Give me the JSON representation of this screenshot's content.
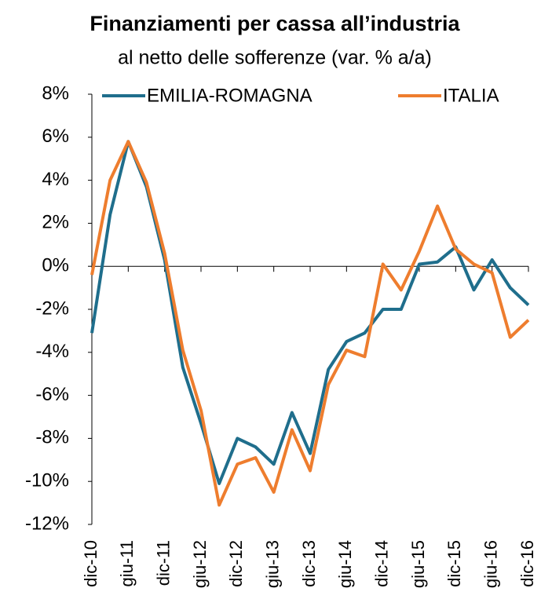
{
  "chart_data": {
    "type": "line",
    "title": "Finanziamenti per cassa all’industria",
    "subtitle": "al netto delle sofferenze (var. % a/a)",
    "categories": [
      "dic-10",
      null,
      "giu-11",
      null,
      "dic-11",
      null,
      "giu-12",
      null,
      "dic-12",
      null,
      "giu-13",
      null,
      "dic-13",
      null,
      "giu-14",
      null,
      "dic-14",
      null,
      "giu-15",
      null,
      "dic-15",
      null,
      "giu-16",
      null,
      "dic-16"
    ],
    "series": [
      {
        "name": "EMILIA-ROMAGNA",
        "color": "#1f6e8c",
        "values": [
          -3.1,
          2.4,
          5.8,
          3.7,
          0.3,
          -4.7,
          -7.3,
          -10.1,
          -8.0,
          -8.4,
          -9.2,
          -6.8,
          -8.7,
          -4.8,
          -3.5,
          -3.1,
          -2.0,
          -2.0,
          0.1,
          0.2,
          0.9,
          -1.1,
          0.3,
          -1.0,
          -1.8
        ]
      },
      {
        "name": "ITALIA",
        "color": "#ee7d2e",
        "values": [
          -0.4,
          4.0,
          5.8,
          3.9,
          0.6,
          -3.9,
          -6.7,
          -11.1,
          -9.2,
          -8.9,
          -10.5,
          -7.6,
          -9.5,
          -5.5,
          -3.9,
          -4.2,
          0.1,
          -1.1,
          0.7,
          2.8,
          0.8,
          0.1,
          -0.3,
          -3.3,
          -2.5
        ]
      }
    ],
    "ylim": [
      -12,
      8
    ],
    "yticks": [
      {
        "value": -12,
        "label": "-12%"
      },
      {
        "value": -10,
        "label": "-10%"
      },
      {
        "value": -8,
        "label": "-8%"
      },
      {
        "value": -6,
        "label": "-6%"
      },
      {
        "value": -4,
        "label": "-4%"
      },
      {
        "value": -2,
        "label": "-2%"
      },
      {
        "value": 0,
        "label": "0%"
      },
      {
        "value": 2,
        "label": "2%"
      },
      {
        "value": 4,
        "label": "4%"
      },
      {
        "value": 6,
        "label": "6%"
      },
      {
        "value": 8,
        "label": "8%"
      }
    ],
    "legend": "top"
  }
}
